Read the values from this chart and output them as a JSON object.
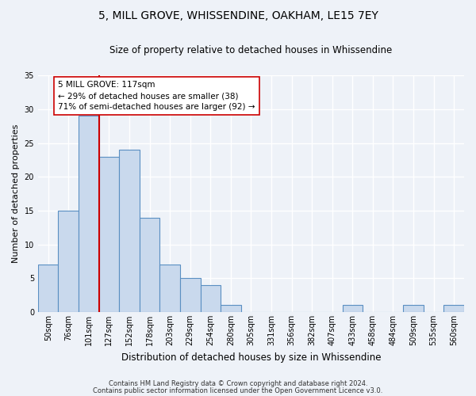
{
  "title": "5, MILL GROVE, WHISSENDINE, OAKHAM, LE15 7EY",
  "subtitle": "Size of property relative to detached houses in Whissendine",
  "xlabel": "Distribution of detached houses by size in Whissendine",
  "ylabel": "Number of detached properties",
  "bar_labels": [
    "50sqm",
    "76sqm",
    "101sqm",
    "127sqm",
    "152sqm",
    "178sqm",
    "203sqm",
    "229sqm",
    "254sqm",
    "280sqm",
    "305sqm",
    "331sqm",
    "356sqm",
    "382sqm",
    "407sqm",
    "433sqm",
    "458sqm",
    "484sqm",
    "509sqm",
    "535sqm",
    "560sqm"
  ],
  "bar_values": [
    7,
    15,
    29,
    23,
    24,
    14,
    7,
    5,
    4,
    1,
    0,
    0,
    0,
    0,
    0,
    1,
    0,
    0,
    1,
    0,
    1
  ],
  "bar_color": "#c9d9ed",
  "bar_edge_color": "#5a8fc2",
  "property_line_x": 2.5,
  "property_line_color": "#cc0000",
  "annotation_text": "5 MILL GROVE: 117sqm\n← 29% of detached houses are smaller (38)\n71% of semi-detached houses are larger (92) →",
  "annotation_box_color": "#ffffff",
  "annotation_box_edge": "#cc0000",
  "ylim": [
    0,
    35
  ],
  "yticks": [
    0,
    5,
    10,
    15,
    20,
    25,
    30,
    35
  ],
  "footer_line1": "Contains HM Land Registry data © Crown copyright and database right 2024.",
  "footer_line2": "Contains public sector information licensed under the Open Government Licence v3.0.",
  "bg_color": "#eef2f8",
  "plot_bg_color": "#eef2f8",
  "grid_color": "#ffffff",
  "title_fontsize": 10,
  "subtitle_fontsize": 8.5,
  "xlabel_fontsize": 8.5,
  "ylabel_fontsize": 8,
  "tick_fontsize": 7,
  "annotation_fontsize": 7.5
}
